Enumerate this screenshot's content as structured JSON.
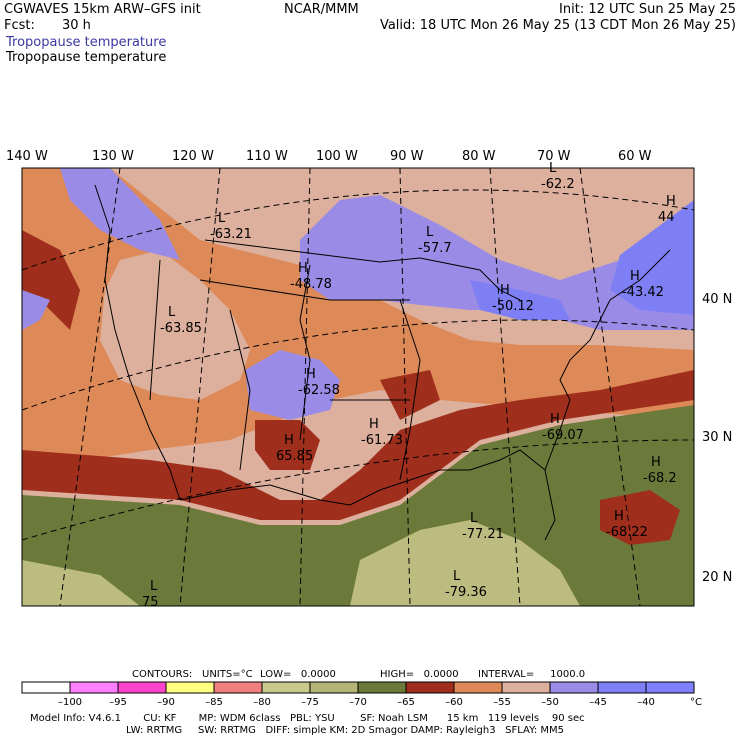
{
  "header": {
    "model": "CGWAVES 15km ARW–GFS init",
    "forecast_label": "Fcst:",
    "forecast_hours": "30 h",
    "center": "NCAR/MMM",
    "init": "Init: 12 UTC Sun 25 May 25",
    "valid": "Valid: 18 UTC Mon 26 May 25 (13 CDT Mon 26 May 25)",
    "field_title_1": "Tropopause temperature",
    "field_title_2": "Tropopause temperature"
  },
  "map": {
    "lon_labels": [
      "140 W",
      "130 W",
      "120 W",
      "110 W",
      "100 W",
      "90 W",
      "80 W",
      "70 W",
      "60 W"
    ],
    "lat_labels": [
      "40 N",
      "30 N",
      "20 N"
    ],
    "pressure_centers": [
      {
        "type": "L",
        "value": "-63.21"
      },
      {
        "type": "L",
        "value": "-57.7"
      },
      {
        "type": "L",
        "value": "-62.2"
      },
      {
        "type": "H",
        "value": "-48.78"
      },
      {
        "type": "H",
        "value": "-50.12"
      },
      {
        "type": "H",
        "value": "-43.42"
      },
      {
        "type": "H",
        "value": "44"
      },
      {
        "type": "L",
        "value": "-63.85"
      },
      {
        "type": "H",
        "value": "-62.58"
      },
      {
        "type": "H",
        "value": "65.85"
      },
      {
        "type": "H",
        "value": "-61.73"
      },
      {
        "type": "H",
        "value": "-69.07"
      },
      {
        "type": "H",
        "value": "-68.2"
      },
      {
        "type": "H",
        "value": "-68.22"
      },
      {
        "type": "L",
        "value": "-77.21"
      },
      {
        "type": "L",
        "value": "-79.36"
      },
      {
        "type": "L",
        "value": "75"
      }
    ],
    "colors": {
      "purple": "#9a8ce6",
      "blue": "#7f7ff5",
      "pink": "#ddb09e",
      "orange": "#de8a58",
      "red": "#a02e1c",
      "olive": "#6b7a3a",
      "khaki": "#bcbc80"
    }
  },
  "contour_info": {
    "contours": "CONTOURS:",
    "units": "UNITS=°C",
    "low": "LOW=   0.0000",
    "high": "HIGH=   0.0000",
    "interval": "INTERVAL=     1000.0"
  },
  "colorbar": {
    "colors": [
      "#ffffff",
      "#ff80ff",
      "#ff44cc",
      "#ffff80",
      "#f08080",
      "#c8c88c",
      "#b4b478",
      "#6b7a3a",
      "#a02e1c",
      "#de8a58",
      "#ddb09e",
      "#9a8ce6",
      "#7f7ff5",
      "#8080ff"
    ],
    "labels": [
      "–100",
      "–95",
      "–90",
      "–85",
      "–80",
      "–75",
      "–70",
      "–65",
      "–60",
      "–55",
      "–50",
      "–45",
      "–40"
    ],
    "unit": "°C"
  },
  "footer": {
    "line1": "Model Info: V4.6.1       CU: KF       MP: WDM 6class   PBL: YSU        SF: Noah LSM      15 km   119 levels    90 sec",
    "line2": "LW: RRTMG     SW: RRTMG   DIFF: simple KM: 2D Smagor DAMP: Rayleigh3   SFLAY: MM5"
  }
}
